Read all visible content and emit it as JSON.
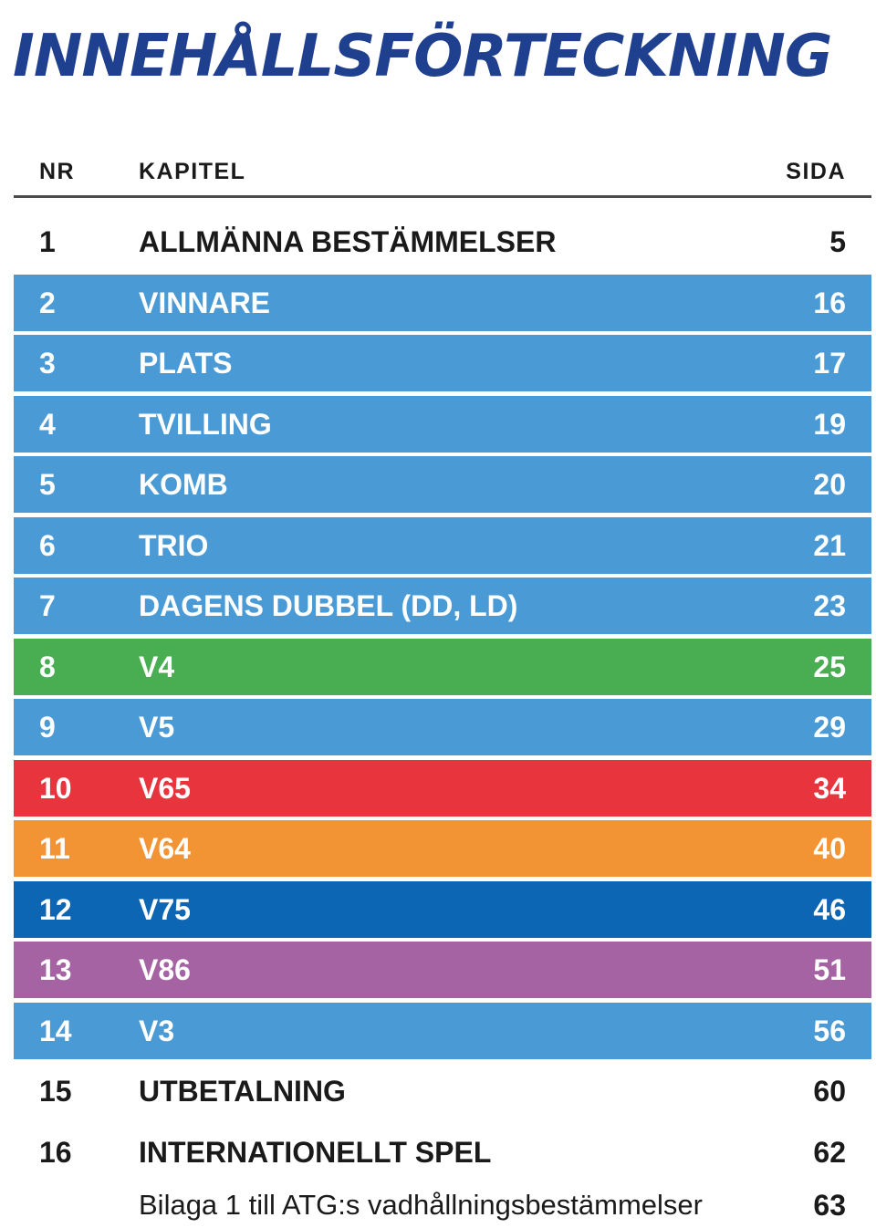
{
  "title": "INNEHÅLLSFÖRTECKNING",
  "header": {
    "nr": "NR",
    "kapitel": "KAPITEL",
    "sida": "SIDA"
  },
  "colors": {
    "title": "#1f3f8f",
    "light_blue": "#4a9ad6",
    "green": "#49ad51",
    "red": "#e8343d",
    "orange": "#f39434",
    "dark_blue": "#0d66b3",
    "purple": "#a663a4"
  },
  "rows": [
    {
      "nr": "1",
      "kapitel": "ALLMÄNNA BESTÄMMELSER",
      "sida": "5",
      "color": "none"
    },
    {
      "nr": "2",
      "kapitel": "VINNARE",
      "sida": "16",
      "color": "light_blue"
    },
    {
      "nr": "3",
      "kapitel": "PLATS",
      "sida": "17",
      "color": "light_blue"
    },
    {
      "nr": "4",
      "kapitel": "TVILLING",
      "sida": "19",
      "color": "light_blue"
    },
    {
      "nr": "5",
      "kapitel": "KOMB",
      "sida": "20",
      "color": "light_blue"
    },
    {
      "nr": "6",
      "kapitel": "TRIO",
      "sida": "21",
      "color": "light_blue"
    },
    {
      "nr": "7",
      "kapitel": "DAGENS DUBBEL (DD, LD)",
      "sida": "23",
      "color": "light_blue"
    },
    {
      "nr": "8",
      "kapitel": "V4",
      "sida": "25",
      "color": "green"
    },
    {
      "nr": "9",
      "kapitel": "V5",
      "sida": "29",
      "color": "light_blue"
    },
    {
      "nr": "10",
      "kapitel": "V65",
      "sida": "34",
      "color": "red"
    },
    {
      "nr": "11",
      "kapitel": "V64",
      "sida": "40",
      "color": "orange"
    },
    {
      "nr": "12",
      "kapitel": "V75",
      "sida": "46",
      "color": "dark_blue"
    },
    {
      "nr": "13",
      "kapitel": "V86",
      "sida": "51",
      "color": "purple"
    },
    {
      "nr": "14",
      "kapitel": "V3",
      "sida": "56",
      "color": "light_blue"
    },
    {
      "nr": "15",
      "kapitel": "UTBETALNING",
      "sida": "60",
      "color": "none"
    },
    {
      "nr": "16",
      "kapitel": "INTERNATIONELLT SPEL",
      "sida": "62",
      "color": "none"
    }
  ],
  "appendix": {
    "kapitel": "Bilaga 1 till ATG:s vadhållningsbestämmelser",
    "sida": "63"
  }
}
